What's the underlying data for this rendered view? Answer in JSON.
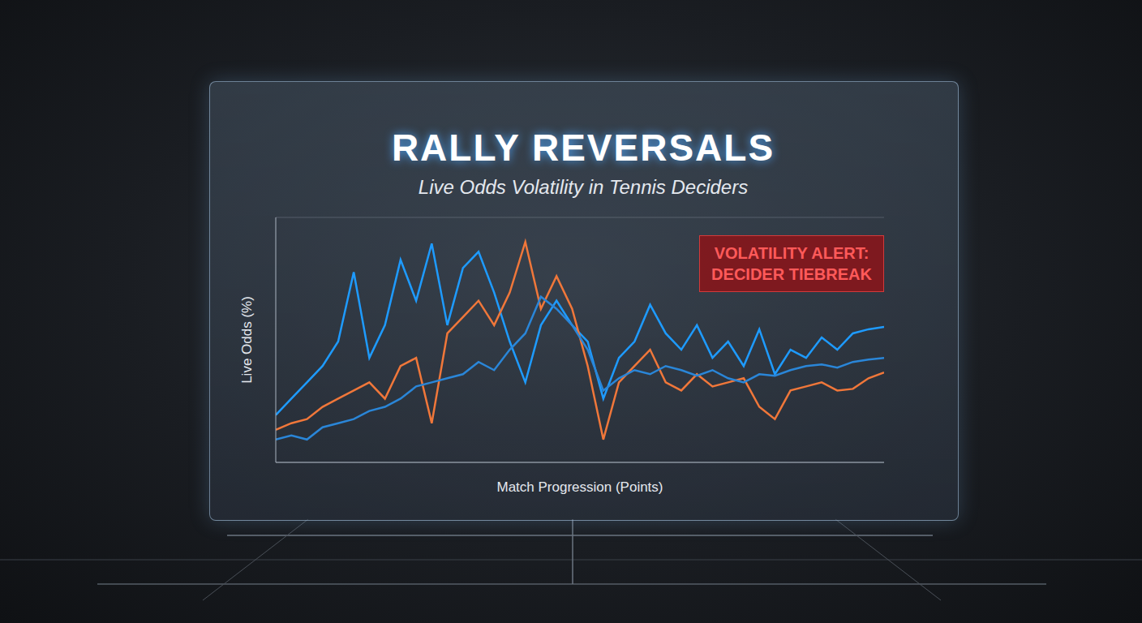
{
  "chart_data": {
    "type": "line",
    "title": "RALLY REVERSALS",
    "subtitle": "Live Odds Volatility in Tennis Deciders",
    "x_label": "Match Progression (Points)",
    "y_label": "Live Odds (%)",
    "annotation": "VOLATILITY ALERT: DECIDER TIEBREAK",
    "x": [
      1,
      2,
      3,
      4,
      5,
      6,
      7,
      8,
      9,
      10,
      11,
      12,
      13,
      14,
      15,
      16,
      17,
      18,
      19,
      20,
      21,
      22,
      23,
      24,
      25,
      26,
      27,
      28,
      29,
      30,
      31,
      32,
      33,
      34,
      35,
      36,
      37,
      38,
      39,
      40
    ],
    "xlim": [
      1,
      40
    ],
    "xticks": [
      1,
      40
    ],
    "ylim": [
      0,
      60
    ],
    "yticks": [
      0,
      10,
      20,
      30,
      40,
      50,
      60
    ],
    "grid": true,
    "tick_labels": false,
    "series": [
      {
        "color": "#1e9bff",
        "values": [
          11.6,
          15.6,
          19.6,
          23.6,
          29.6,
          46.6,
          25.6,
          33.6,
          49.6,
          39.6,
          53.6,
          33.6,
          47.6,
          51.6,
          41.6,
          29.6,
          19.6,
          33.6,
          39.6,
          33.6,
          29.6,
          15.6,
          25.6,
          29.6,
          38.6,
          31.6,
          27.6,
          33.6,
          25.6,
          29.6,
          23.6,
          32.6,
          21.6,
          27.6,
          25.6,
          30.6,
          27.6,
          31.6,
          32.6,
          33.2
        ]
      },
      {
        "color": "#f0773a",
        "values": [
          8,
          9.6,
          10.6,
          13.6,
          15.6,
          17.6,
          19.6,
          15.6,
          23.6,
          25.6,
          9.6,
          31.6,
          35.6,
          39.6,
          33.6,
          41.6,
          54,
          37.6,
          45.6,
          37.6,
          23.6,
          5.6,
          19.6,
          23.6,
          27.6,
          19.6,
          17.6,
          21.6,
          18.6,
          19.6,
          20.6,
          13.6,
          10.6,
          17.6,
          18.6,
          19.6,
          17.6,
          18,
          20.6,
          22
        ]
      },
      {
        "color": "#2a86d8",
        "values": [
          5.6,
          6.6,
          5.6,
          8.6,
          9.6,
          10.6,
          12.6,
          13.6,
          15.6,
          18.6,
          19.6,
          20.6,
          21.6,
          24.6,
          22.6,
          27.6,
          31.6,
          40.6,
          37.6,
          33.6,
          27.6,
          17.6,
          20.6,
          22.6,
          21.6,
          23.6,
          22.6,
          21.2,
          22.6,
          20.6,
          19.6,
          21.6,
          21.2,
          22.6,
          23.6,
          24,
          23.2,
          24.6,
          25.2,
          25.6
        ]
      }
    ]
  }
}
